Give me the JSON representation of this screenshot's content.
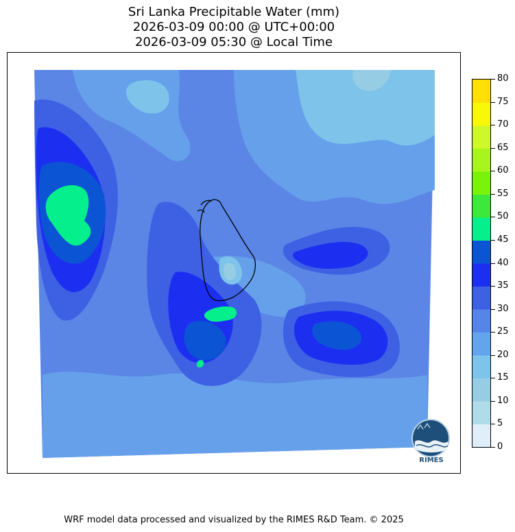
{
  "title": {
    "line1": "Sri Lanka Precipitable Water (mm)",
    "line2": "2026-03-09 00:00 @ UTC+00:00",
    "line3": "2026-03-09 05:30 @ Local Time"
  },
  "colorbar": {
    "ticks": [
      "80",
      "75",
      "70",
      "65",
      "60",
      "55",
      "50",
      "45",
      "40",
      "35",
      "30",
      "25",
      "20",
      "15",
      "10",
      "5",
      "0"
    ],
    "levels": [
      0,
      5,
      10,
      15,
      20,
      25,
      30,
      35,
      40,
      45,
      50,
      55,
      60,
      65,
      70,
      75,
      80
    ],
    "colors": [
      "#dfeef8",
      "#b0dce9",
      "#97cde4",
      "#7dc3ea",
      "#64a4ec",
      "#5585e7",
      "#3e61e4",
      "#1c2ff1",
      "#0b55d4",
      "#05f08c",
      "#3ce83c",
      "#7af20a",
      "#a8f41d",
      "#cef82a",
      "#f7f908",
      "#ffe004",
      "#ffcc00"
    ]
  },
  "map": {
    "colors": {
      "background": "#5b86e6",
      "light": "#66a0eb",
      "pale": "#7dc3ea",
      "lightest": "#97cde4",
      "mid": "#3e61e4",
      "dark": "#1c2ff1",
      "darker": "#0b55d4",
      "peak": "#05f08c",
      "coast": "#000000"
    }
  },
  "logo": {
    "text": "RIMES",
    "icon": "rimes-globe-logo"
  },
  "footer": {
    "credit": "WRF model data processed and visualized by the RIMES R&D Team. © 2025"
  }
}
